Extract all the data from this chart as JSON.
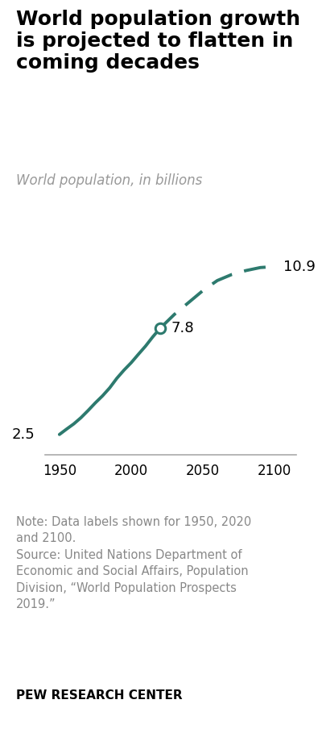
{
  "title": "World population growth\nis projected to flatten in\ncoming decades",
  "subtitle": "World population, in billions",
  "line_color": "#2d7a6e",
  "background_color": "#ffffff",
  "solid_years": [
    1950,
    1955,
    1960,
    1965,
    1970,
    1975,
    1980,
    1985,
    1990,
    1995,
    2000,
    2005,
    2010,
    2015,
    2020
  ],
  "solid_values": [
    2.5,
    2.77,
    3.03,
    3.34,
    3.7,
    4.08,
    4.43,
    4.83,
    5.31,
    5.72,
    6.09,
    6.51,
    6.92,
    7.38,
    7.8
  ],
  "dashed_years": [
    2020,
    2030,
    2040,
    2050,
    2060,
    2070,
    2080,
    2090,
    2100
  ],
  "dashed_values": [
    7.8,
    8.5,
    9.1,
    9.7,
    10.2,
    10.5,
    10.7,
    10.85,
    10.9
  ],
  "xlim": [
    1940,
    2115
  ],
  "ylim": [
    1.5,
    12.5
  ],
  "xticks": [
    1950,
    2000,
    2050,
    2100
  ],
  "note_text": "Note: Data labels shown for 1950, 2020\nand 2100.\nSource: United Nations Department of\nEconomic and Social Affairs, Population\nDivision, “World Population Prospects\n2019.”",
  "footer_text": "PEW RESEARCH CENTER",
  "note_color": "#888888",
  "footer_color": "#000000",
  "title_fontsize": 18,
  "subtitle_fontsize": 12,
  "label_fontsize": 13,
  "tick_fontsize": 12,
  "note_fontsize": 10.5,
  "footer_fontsize": 11
}
